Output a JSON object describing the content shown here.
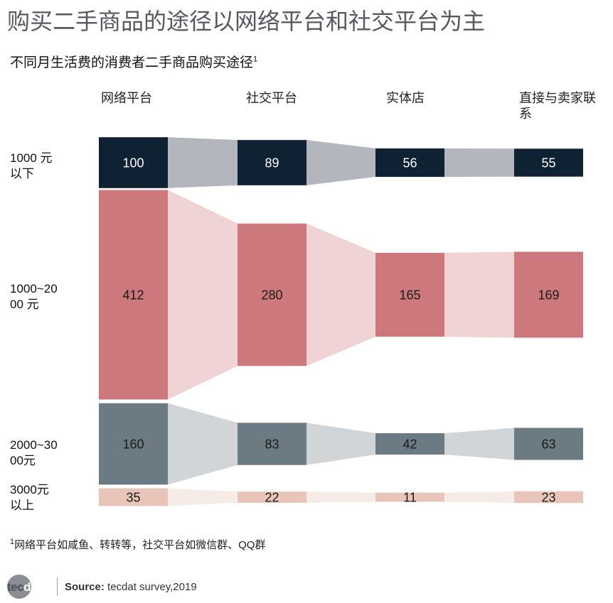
{
  "header": {
    "title": "购买二手商品的途径以网络平台和社交平台为主",
    "subtitle": "不同月生活费的消费者二手商品购买途径",
    "subtitle_sup": "1"
  },
  "chart_data": {
    "type": "bar",
    "columns": [
      "网络平台",
      "社交平台",
      "实体店",
      "直接与卖家联系"
    ],
    "rows": [
      {
        "label": "1000 元 以下",
        "values": [
          100,
          89,
          56,
          55
        ],
        "color": "#0f2233",
        "link_color": "#b3b7bd"
      },
      {
        "label": "1000~2000 元",
        "values": [
          412,
          280,
          165,
          169
        ],
        "color": "#cc787c",
        "link_color": "#f0d3d4"
      },
      {
        "label": "2000~3000元",
        "values": [
          160,
          83,
          42,
          63
        ],
        "color": "#6c7a84",
        "link_color": "#d1d5d8"
      },
      {
        "label": "3000元 以上",
        "values": [
          35,
          22,
          11,
          23
        ],
        "color": "#e8c4b9",
        "link_color": "#f7ebe7"
      }
    ],
    "value_label_color": "#1a1a1a",
    "value_label_color_dark_row": "#ffffff"
  },
  "labels": {
    "col_0": "网络平台",
    "col_1": "社交平台",
    "col_2": "实体店",
    "col_3": "直接与卖家联系",
    "row_0": "1000 元\n以下",
    "row_1": "1000~20\n00 元",
    "row_2": "2000~30\n00元",
    "row_3": "3000元\n以上"
  },
  "footer": {
    "footnote_sup": "1",
    "footnote": "网络平台如咸鱼、转转等，社交平台如微信群、QQ群",
    "logo_part1": "tec",
    "logo_part2": "dat",
    "source_label": "Source:",
    "source_text": " tecdat survey,2019"
  }
}
